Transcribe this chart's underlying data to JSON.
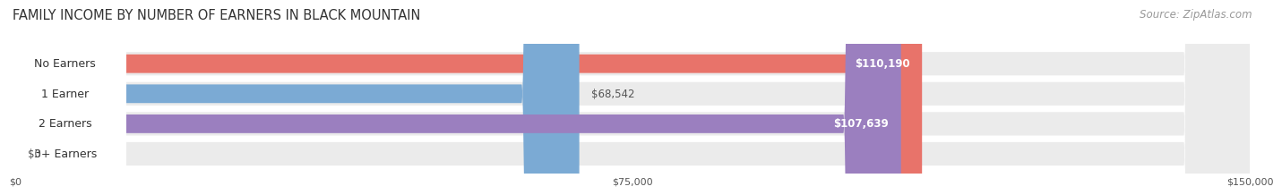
{
  "title": "FAMILY INCOME BY NUMBER OF EARNERS IN BLACK MOUNTAIN",
  "source": "Source: ZipAtlas.com",
  "categories": [
    "No Earners",
    "1 Earner",
    "2 Earners",
    "3+ Earners"
  ],
  "values": [
    110190,
    68542,
    107639,
    0
  ],
  "bar_colors": [
    "#E8736A",
    "#7BAAD4",
    "#9B7FBF",
    "#6ECDD4"
  ],
  "value_labels": [
    "$110,190",
    "$68,542",
    "$107,639",
    "$0"
  ],
  "value_label_inside": [
    true,
    false,
    true,
    false
  ],
  "xlim": [
    0,
    150000
  ],
  "xticks": [
    0,
    75000,
    150000
  ],
  "xtick_labels": [
    "$0",
    "$75,000",
    "$150,000"
  ],
  "bg_color": "#ffffff",
  "row_bg_color": "#ebebeb",
  "title_fontsize": 10.5,
  "source_fontsize": 8.5,
  "bar_height": 0.62,
  "cat_label_fontsize": 9,
  "val_label_fontsize": 8.5
}
